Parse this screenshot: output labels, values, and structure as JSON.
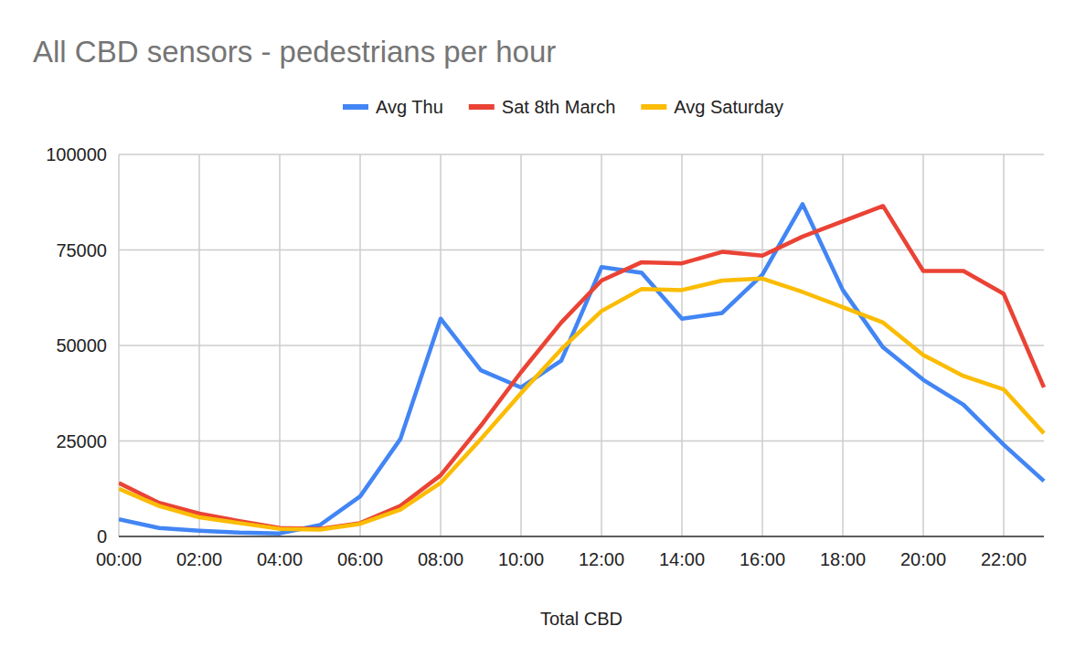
{
  "chart_data": {
    "type": "line",
    "title": "All CBD sensors - pedestrians per hour",
    "x_label": "Total CBD",
    "categories": [
      "00:00",
      null,
      "02:00",
      null,
      "04:00",
      null,
      "06:00",
      null,
      "08:00",
      null,
      "10:00",
      null,
      "12:00",
      null,
      "14:00",
      null,
      "16:00",
      null,
      "18:00",
      null,
      "20:00",
      null,
      "22:00",
      null
    ],
    "series": [
      {
        "name": "Avg Thu",
        "color": "#4285f4",
        "values": [
          4500,
          2200,
          1500,
          1000,
          800,
          3000,
          10500,
          25500,
          57000,
          43500,
          39000,
          46000,
          70500,
          69000,
          57000,
          58500,
          68500,
          87000,
          64500,
          49500,
          41000,
          34500,
          24000,
          14500
        ]
      },
      {
        "name": "Sat 8th March",
        "color": "#ea4335",
        "values": [
          14000,
          8800,
          6000,
          4000,
          2200,
          2000,
          3500,
          8000,
          16000,
          29000,
          43000,
          56000,
          67000,
          71800,
          71500,
          74500,
          73500,
          78500,
          82500,
          86500,
          69500,
          69500,
          63500,
          39000
        ]
      },
      {
        "name": "Avg Saturday",
        "color": "#fbbc04",
        "values": [
          12500,
          8000,
          5000,
          3500,
          2000,
          1800,
          3300,
          7000,
          14000,
          25500,
          37500,
          49000,
          59000,
          64800,
          64500,
          67000,
          67500,
          64000,
          60000,
          56000,
          47500,
          42000,
          38500,
          27000
        ]
      }
    ],
    "ylim": [
      0,
      100000
    ],
    "yticks": [
      0,
      25000,
      50000,
      75000,
      100000
    ],
    "grid": true,
    "legend": "top"
  }
}
